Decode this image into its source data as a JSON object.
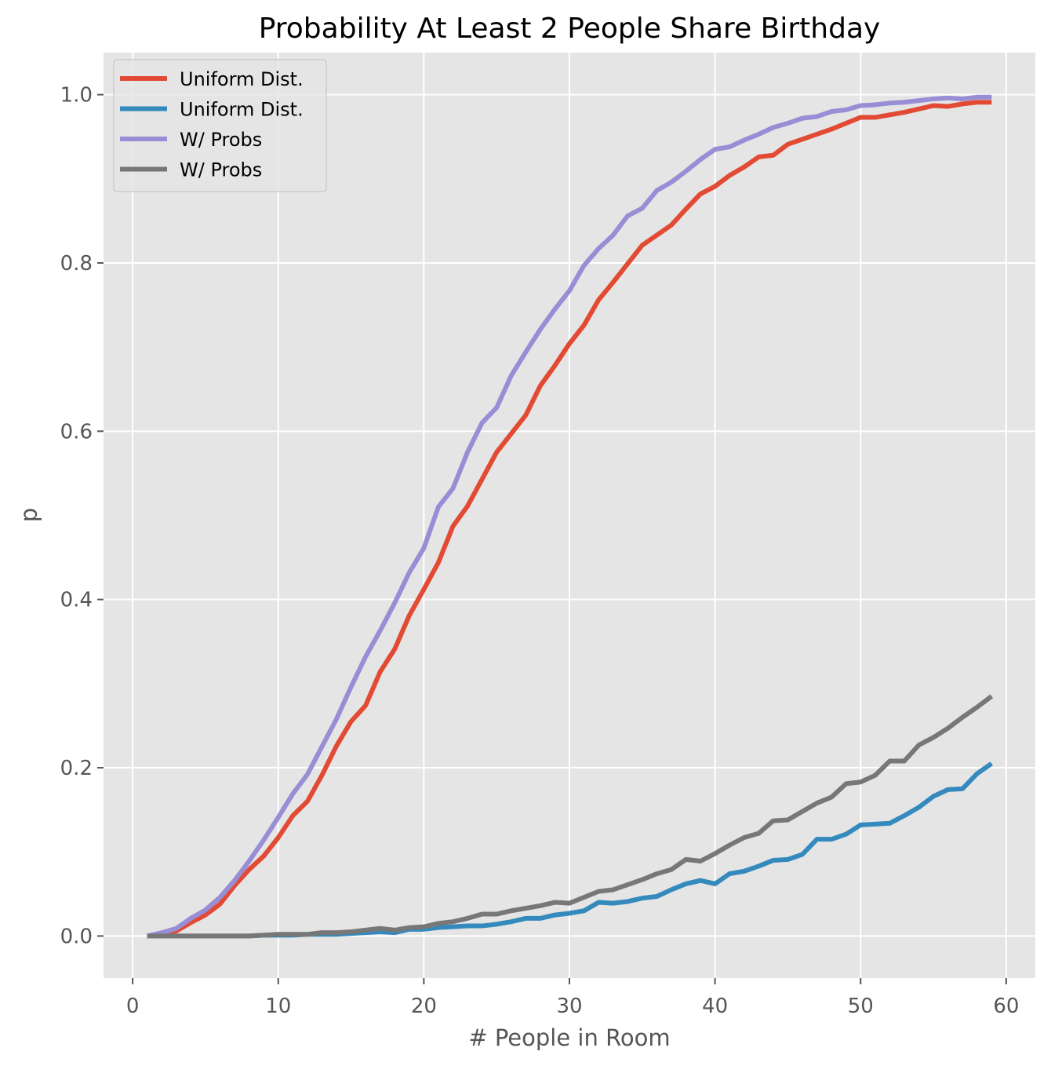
{
  "chart_data": {
    "type": "line",
    "title": "Probability At Least 2 People Share Birthday",
    "xlabel": "# People in Room",
    "ylabel": "p",
    "xlim": [
      -2,
      62
    ],
    "ylim": [
      -0.05,
      1.05
    ],
    "xticks": [
      0,
      10,
      20,
      30,
      40,
      50,
      60
    ],
    "yticks": [
      0.0,
      0.2,
      0.4,
      0.6,
      0.8,
      1.0
    ],
    "xtick_labels": [
      "0",
      "10",
      "20",
      "30",
      "40",
      "50",
      "60"
    ],
    "ytick_labels": [
      "0.0",
      "0.2",
      "0.4",
      "0.6",
      "0.8",
      "1.0"
    ],
    "grid": true,
    "legend_position": "top-left",
    "background": "#e5e5e5",
    "x": [
      1,
      2,
      3,
      4,
      5,
      6,
      7,
      8,
      9,
      10,
      11,
      12,
      13,
      14,
      15,
      16,
      17,
      18,
      19,
      20,
      21,
      22,
      23,
      24,
      25,
      26,
      27,
      28,
      29,
      30,
      31,
      32,
      33,
      34,
      35,
      36,
      37,
      38,
      39,
      40,
      41,
      42,
      43,
      44,
      45,
      46,
      47,
      48,
      49,
      50,
      51,
      52,
      53,
      54,
      55,
      56,
      57,
      58,
      59
    ],
    "series": [
      {
        "name": "Uniform Dist.",
        "color": "#e24a33",
        "values": [
          0.0,
          0.002,
          0.006,
          0.016,
          0.025,
          0.038,
          0.06,
          0.079,
          0.095,
          0.117,
          0.143,
          0.16,
          0.191,
          0.226,
          0.255,
          0.274,
          0.314,
          0.341,
          0.381,
          0.412,
          0.444,
          0.487,
          0.511,
          0.543,
          0.575,
          0.597,
          0.619,
          0.654,
          0.678,
          0.704,
          0.726,
          0.756,
          0.777,
          0.799,
          0.821,
          0.833,
          0.845,
          0.864,
          0.882,
          0.891,
          0.904,
          0.914,
          0.926,
          0.928,
          0.941,
          0.947,
          0.953,
          0.959,
          0.966,
          0.973,
          0.973,
          0.976,
          0.979,
          0.983,
          0.987,
          0.986,
          0.989,
          0.991,
          0.991
        ]
      },
      {
        "name": "Uniform Dist.",
        "color": "#348abd",
        "values": [
          0.0,
          0.0,
          0.0,
          0.0,
          0.0,
          0.0,
          0.0,
          0.0,
          0.001,
          0.001,
          0.001,
          0.002,
          0.002,
          0.002,
          0.003,
          0.004,
          0.005,
          0.004,
          0.008,
          0.008,
          0.01,
          0.011,
          0.012,
          0.012,
          0.014,
          0.017,
          0.021,
          0.021,
          0.025,
          0.027,
          0.03,
          0.04,
          0.039,
          0.041,
          0.045,
          0.047,
          0.055,
          0.062,
          0.066,
          0.062,
          0.074,
          0.077,
          0.083,
          0.09,
          0.091,
          0.097,
          0.115,
          0.115,
          0.121,
          0.132,
          0.133,
          0.134,
          0.143,
          0.153,
          0.166,
          0.174,
          0.175,
          0.193,
          0.205
        ]
      },
      {
        "name": "W/ Probs",
        "color": "#988ed5",
        "values": [
          0.0,
          0.004,
          0.009,
          0.021,
          0.031,
          0.046,
          0.066,
          0.089,
          0.114,
          0.141,
          0.169,
          0.192,
          0.225,
          0.258,
          0.296,
          0.332,
          0.363,
          0.396,
          0.432,
          0.461,
          0.51,
          0.532,
          0.575,
          0.61,
          0.628,
          0.666,
          0.694,
          0.721,
          0.745,
          0.767,
          0.797,
          0.817,
          0.833,
          0.856,
          0.865,
          0.886,
          0.896,
          0.909,
          0.923,
          0.935,
          0.938,
          0.946,
          0.953,
          0.961,
          0.966,
          0.972,
          0.974,
          0.98,
          0.982,
          0.987,
          0.988,
          0.99,
          0.991,
          0.993,
          0.995,
          0.996,
          0.995,
          0.997,
          0.997
        ]
      },
      {
        "name": "W/ Probs",
        "color": "#777777",
        "values": [
          0.0,
          0.0,
          0.0,
          0.0,
          0.0,
          0.0,
          0.0,
          0.0,
          0.001,
          0.002,
          0.002,
          0.002,
          0.004,
          0.004,
          0.005,
          0.007,
          0.009,
          0.007,
          0.01,
          0.011,
          0.015,
          0.017,
          0.021,
          0.026,
          0.026,
          0.03,
          0.033,
          0.036,
          0.04,
          0.039,
          0.046,
          0.053,
          0.055,
          0.061,
          0.067,
          0.074,
          0.079,
          0.091,
          0.089,
          0.098,
          0.108,
          0.117,
          0.122,
          0.137,
          0.138,
          0.148,
          0.158,
          0.165,
          0.181,
          0.183,
          0.191,
          0.208,
          0.208,
          0.227,
          0.236,
          0.247,
          0.26,
          0.272,
          0.285
        ]
      }
    ]
  }
}
